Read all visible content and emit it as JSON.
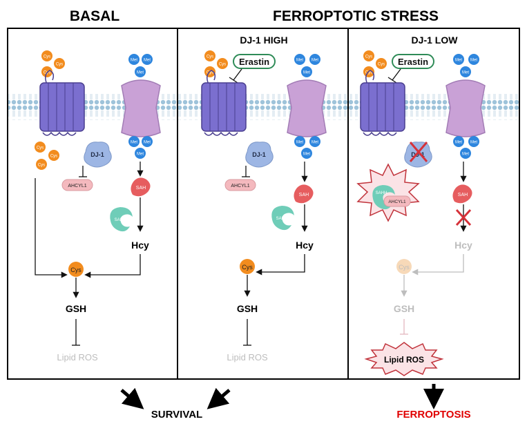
{
  "headers": {
    "basal": "BASAL",
    "ferroptotic_stress": "FERROPTOTIC STRESS",
    "dj1_high": "DJ-1 HIGH",
    "dj1_low": "DJ-1 LOW"
  },
  "molecules": {
    "cys": "Cys",
    "met": "Met",
    "erastin": "Erastin",
    "dj1": "DJ-1",
    "ahcyl1": "AHCYL1",
    "sah": "SAH",
    "sahh": "SAHH",
    "hcy": "Hcy",
    "gsh": "GSH",
    "lipid_ros": "Lipid ROS"
  },
  "outcomes": {
    "survival": "SURVIVAL",
    "ferroptosis": "FERROPTOSIS"
  },
  "colors": {
    "cys_orange": "#F28C1E",
    "met_blue": "#2E86DE",
    "membrane_blue": "#9EC3DA",
    "transporter_purple": "#7B6FCF",
    "channel_pink": "#C9A1D6",
    "dj1_blue": "#9DB6E4",
    "ahcyl1_pink": "#F4B9BE",
    "sah_red": "#E65D5F",
    "sahh_teal": "#6FCDB8",
    "faded_gray": "#BDBDBD",
    "ferroptosis_red": "#E00000",
    "erastin_green": "#2E8B57"
  }
}
